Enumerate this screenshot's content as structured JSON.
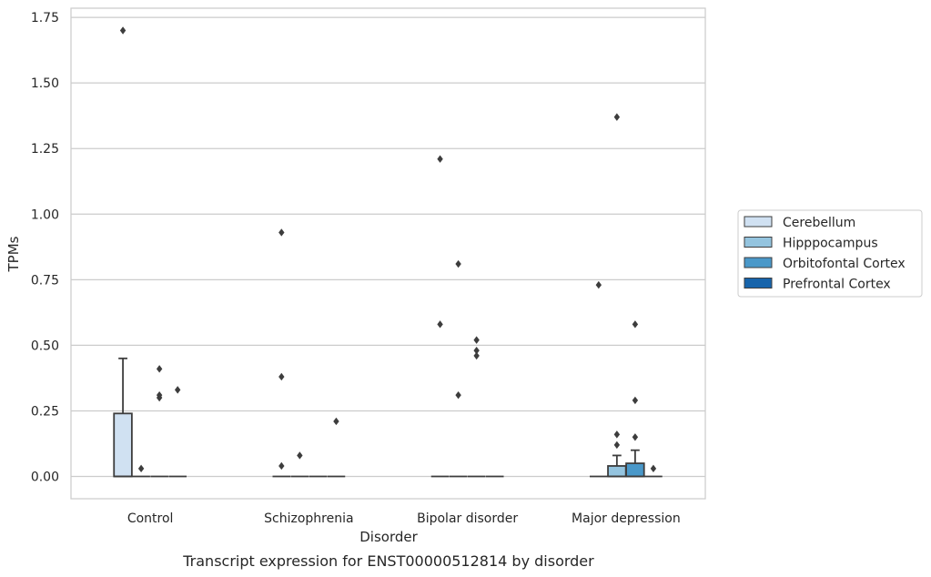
{
  "chart_data": {
    "type": "box",
    "title": "",
    "caption": "Transcript expression for ENST00000512814 by disorder",
    "xlabel": "Disorder",
    "ylabel": "TPMs",
    "ylim": [
      -0.085,
      1.785
    ],
    "yticks": [
      0.0,
      0.25,
      0.5,
      0.75,
      1.0,
      1.25,
      1.5,
      1.75
    ],
    "ytick_labels": [
      "0.00",
      "0.25",
      "0.50",
      "0.75",
      "1.00",
      "1.25",
      "1.50",
      "1.75"
    ],
    "grid": true,
    "legend_position": "right",
    "categories": [
      "Control",
      "Schizophrenia",
      "Bipolar disorder",
      "Major depression"
    ],
    "series": [
      {
        "name": "Cerebellum",
        "color": "#d0e1f2",
        "boxes": [
          {
            "q1": 0.0,
            "median": 0.0,
            "q3": 0.24,
            "whisker_low": 0.0,
            "whisker_high": 0.45,
            "outliers": [
              1.7
            ]
          },
          {
            "q1": 0.0,
            "median": 0.0,
            "q3": 0.0,
            "whisker_low": 0.0,
            "whisker_high": 0.0,
            "outliers": [
              0.38,
              0.93,
              0.04
            ]
          },
          {
            "q1": 0.0,
            "median": 0.0,
            "q3": 0.0,
            "whisker_low": 0.0,
            "whisker_high": 0.0,
            "outliers": [
              1.21,
              0.58
            ]
          },
          {
            "q1": 0.0,
            "median": 0.0,
            "q3": 0.0,
            "whisker_low": 0.0,
            "whisker_high": 0.0,
            "outliers": [
              0.73
            ]
          }
        ]
      },
      {
        "name": "Hipppocampus",
        "color": "#94c4df",
        "boxes": [
          {
            "q1": 0.0,
            "median": 0.0,
            "q3": 0.0,
            "whisker_low": 0.0,
            "whisker_high": 0.0,
            "outliers": [
              0.03
            ]
          },
          {
            "q1": 0.0,
            "median": 0.0,
            "q3": 0.0,
            "whisker_low": 0.0,
            "whisker_high": 0.0,
            "outliers": [
              0.08
            ]
          },
          {
            "q1": 0.0,
            "median": 0.0,
            "q3": 0.0,
            "whisker_low": 0.0,
            "whisker_high": 0.0,
            "outliers": [
              0.81,
              0.31
            ]
          },
          {
            "q1": 0.0,
            "median": 0.0,
            "q3": 0.04,
            "whisker_low": 0.0,
            "whisker_high": 0.08,
            "outliers": [
              1.37,
              0.16,
              0.12
            ]
          }
        ]
      },
      {
        "name": "Orbitofontal Cortex",
        "color": "#4a98c9",
        "boxes": [
          {
            "q1": 0.0,
            "median": 0.0,
            "q3": 0.0,
            "whisker_low": 0.0,
            "whisker_high": 0.0,
            "outliers": [
              0.41,
              0.31,
              0.3
            ]
          },
          {
            "q1": 0.0,
            "median": 0.0,
            "q3": 0.0,
            "whisker_low": 0.0,
            "whisker_high": 0.0,
            "outliers": []
          },
          {
            "q1": 0.0,
            "median": 0.0,
            "q3": 0.0,
            "whisker_low": 0.0,
            "whisker_high": 0.0,
            "outliers": [
              0.52,
              0.48,
              0.46
            ]
          },
          {
            "q1": 0.0,
            "median": 0.0,
            "q3": 0.05,
            "whisker_low": 0.0,
            "whisker_high": 0.1,
            "outliers": [
              0.58,
              0.29,
              0.15
            ]
          }
        ]
      },
      {
        "name": "Prefrontal Cortex",
        "color": "#1764ab",
        "boxes": [
          {
            "q1": 0.0,
            "median": 0.0,
            "q3": 0.0,
            "whisker_low": 0.0,
            "whisker_high": 0.0,
            "outliers": [
              0.33
            ]
          },
          {
            "q1": 0.0,
            "median": 0.0,
            "q3": 0.0,
            "whisker_low": 0.0,
            "whisker_high": 0.0,
            "outliers": [
              0.21
            ]
          },
          {
            "q1": 0.0,
            "median": 0.0,
            "q3": 0.0,
            "whisker_low": 0.0,
            "whisker_high": 0.0,
            "outliers": []
          },
          {
            "q1": 0.0,
            "median": 0.0,
            "q3": 0.0,
            "whisker_low": 0.0,
            "whisker_high": 0.0,
            "outliers": [
              0.03
            ]
          }
        ]
      }
    ]
  }
}
